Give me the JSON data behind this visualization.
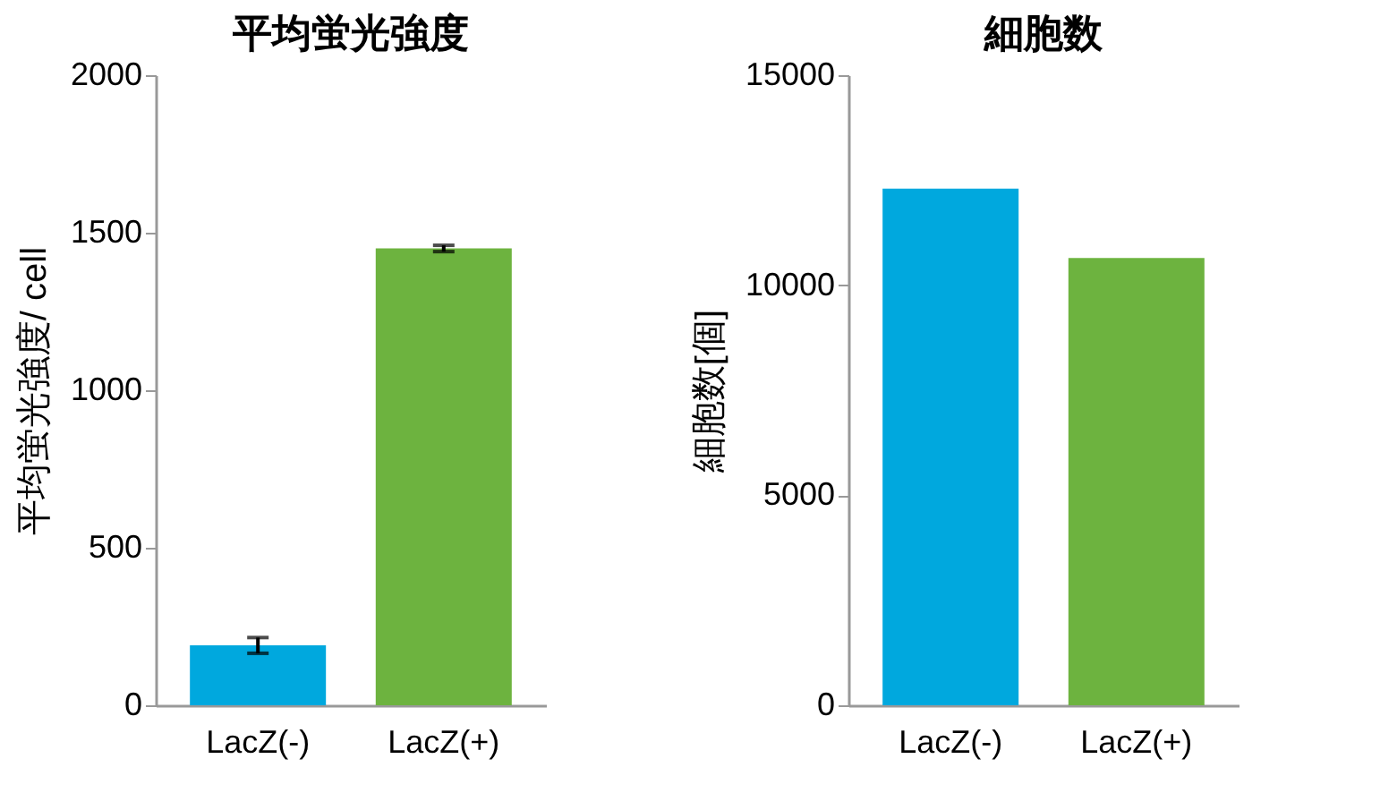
{
  "chart_data": [
    {
      "type": "bar",
      "title": "平均蛍光強度",
      "ylabel": "平均蛍光強度/ cell",
      "categories": [
        "LacZ(-)",
        "LacZ(+)"
      ],
      "values": [
        190,
        1450
      ],
      "colors": [
        "#00a8de",
        "#6db33f"
      ],
      "errors": [
        25,
        10
      ],
      "ylim": [
        0,
        2000
      ],
      "yticks": [
        0,
        500,
        1000,
        1500,
        2000
      ]
    },
    {
      "type": "bar",
      "title": "細胞数",
      "ylabel": "細胞数[個]",
      "categories": [
        "LacZ(-)",
        "LacZ(+)"
      ],
      "values": [
        12300,
        10650
      ],
      "colors": [
        "#00a8de",
        "#6db33f"
      ],
      "ylim": [
        0,
        15000
      ],
      "yticks": [
        0,
        5000,
        10000,
        15000
      ]
    }
  ]
}
